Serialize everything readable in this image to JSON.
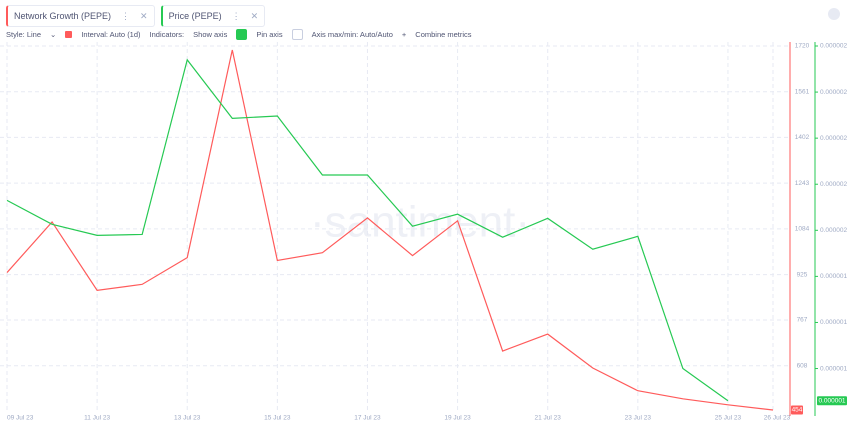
{
  "toolbar": {
    "tabs": [
      "Network Growth (PEPE)",
      "Price (PEPE)"
    ],
    "style": "Style: Line",
    "interval": "Interval: Auto (1d)",
    "indicators": "Indicators:",
    "show_axis": "Show axis",
    "pin_axis": "Pin axis",
    "axis_minmax": "Axis max/min: Auto/Auto",
    "combine": "Combine metrics"
  },
  "chart_data": {
    "type": "line",
    "watermark": "·santiment·",
    "categories": [
      "09 Jul 23",
      null,
      "11 Jul 23",
      null,
      "13 Jul 23",
      null,
      "15 Jul 23",
      null,
      "17 Jul 23",
      null,
      "19 Jul 23",
      null,
      "21 Jul 23",
      null,
      "23 Jul 23",
      null,
      "25 Jul 23",
      "26 Jul 23"
    ],
    "series": [
      {
        "name": "Network Growth (PEPE)",
        "color": "#ff5b5b",
        "values": [
          932,
          1108,
          870,
          891,
          984,
          1706,
          974,
          1001,
          1122,
          991,
          1112,
          659,
          718,
          600,
          521,
          493,
          472,
          454
        ]
      },
      {
        "name": "Price (PEPE)",
        "color": "#26c953",
        "axis": "y2",
        "values": [
          1.615e-06,
          1.563e-06,
          1.539e-06,
          1.541e-06,
          1.92e-06,
          1.793e-06,
          1.798e-06,
          1.67e-06,
          1.67e-06,
          1.559e-06,
          1.585e-06,
          1.535e-06,
          1.576e-06,
          1.509e-06,
          1.537e-06,
          1.25e-06,
          1.18e-06,
          null
        ],
        "value_labels": [
          null,
          null,
          null,
          null,
          null,
          null,
          null,
          null,
          null,
          null,
          null,
          null,
          null,
          null,
          null,
          null,
          "0.000001",
          null
        ]
      }
    ],
    "ylim": [
      454,
      1720
    ],
    "yticks": [
      608,
      767,
      925,
      1084,
      1243,
      1402,
      1561,
      1720
    ],
    "y2lim": [
      1.16e-06,
      1.95e-06
    ],
    "y2ticks": [
      {
        "value": 1.25e-06,
        "label": "0.000001"
      },
      {
        "value": 1.35e-06,
        "label": "0.000001"
      },
      {
        "value": 1.45e-06,
        "label": "0.000001"
      },
      {
        "value": 1.55e-06,
        "label": "0.000002"
      },
      {
        "value": 1.65e-06,
        "label": "0.000002"
      },
      {
        "value": 1.75e-06,
        "label": "0.000002"
      },
      {
        "value": 1.85e-06,
        "label": "0.000002"
      },
      {
        "value": 1.95e-06,
        "label": "0.000002"
      }
    ],
    "grid": true
  }
}
